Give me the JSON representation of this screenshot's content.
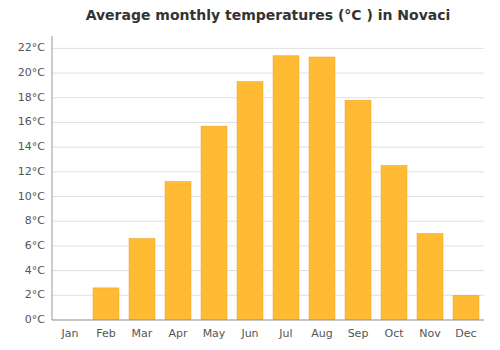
{
  "chart_data": {
    "type": "bar",
    "title": "Average monthly temperatures (°C ) in Novaci",
    "categories": [
      "Jan",
      "Feb",
      "Mar",
      "Apr",
      "May",
      "Jun",
      "Jul",
      "Aug",
      "Sep",
      "Oct",
      "Nov",
      "Dec"
    ],
    "values": [
      0.0,
      2.6,
      6.6,
      11.2,
      15.7,
      19.3,
      21.4,
      21.3,
      17.8,
      12.5,
      7.0,
      2.0
    ],
    "color": "#FFBB33",
    "ylim": [
      0,
      23
    ],
    "yticks": [
      {
        "value": 0,
        "label": "0°C"
      },
      {
        "value": 2,
        "label": "2°C"
      },
      {
        "value": 4,
        "label": "4°C"
      },
      {
        "value": 6,
        "label": "6°C"
      },
      {
        "value": 8,
        "label": "8°C"
      },
      {
        "value": 10,
        "label": "10°C"
      },
      {
        "value": 12,
        "label": "12°C"
      },
      {
        "value": 14,
        "label": "14°C"
      },
      {
        "value": 16,
        "label": "16°C"
      },
      {
        "value": 18,
        "label": "18°C"
      },
      {
        "value": 20,
        "label": "20°C"
      },
      {
        "value": 22,
        "label": "22°C"
      }
    ],
    "grid": true
  }
}
